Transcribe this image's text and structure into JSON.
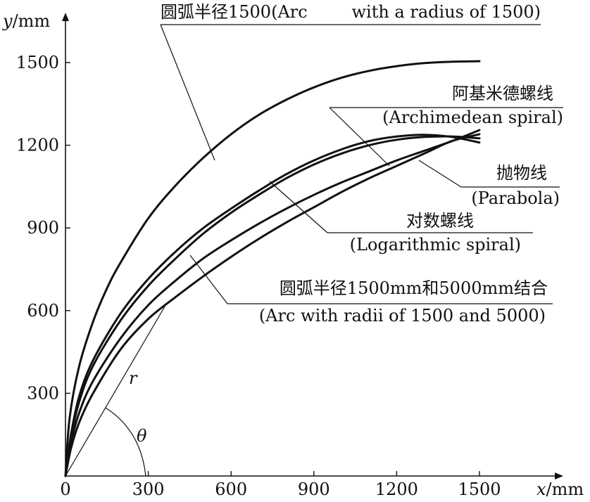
{
  "chart_data": {
    "type": "line",
    "xlabel_var": "x",
    "xlabel_unit": "/mm",
    "ylabel_var": "y",
    "ylabel_unit": "/mm",
    "x_ticks": [
      "0",
      "300",
      "600",
      "900",
      "1200",
      "1500"
    ],
    "y_ticks": [
      "300",
      "600",
      "900",
      "1200",
      "1500"
    ],
    "xlim": [
      0,
      1500
    ],
    "ylim": [
      0,
      1500
    ],
    "series": [
      {
        "name": "圆弧半径1500(Arc with a radius of 1500)",
        "label_cn": "圆弧半径1500(Arc",
        "label_en": "with a radius of 1500)",
        "x": [
          0,
          15,
          50,
          100,
          150,
          200,
          300,
          400,
          500,
          600,
          700,
          800,
          900,
          1000,
          1100,
          1200,
          1300,
          1400,
          1500
        ],
        "y": [
          0,
          210,
          400,
          560,
          680,
          775,
          935,
          1055,
          1155,
          1240,
          1310,
          1365,
          1410,
          1445,
          1470,
          1487,
          1498,
          1503,
          1505
        ]
      },
      {
        "name": "阿基米德螺线(Archimedean spiral)",
        "label_cn": "阿基米德螺线",
        "label_en": "(Archimedean spiral)",
        "x": [
          0,
          20,
          50,
          100,
          200,
          300,
          400,
          500,
          600,
          700,
          800,
          900,
          1000,
          1100,
          1200,
          1300,
          1400,
          1500
        ],
        "y": [
          0,
          150,
          290,
          420,
          590,
          715,
          815,
          900,
          970,
          1035,
          1095,
          1145,
          1185,
          1215,
          1232,
          1238,
          1230,
          1210
        ]
      },
      {
        "name": "抛物线(Parabola)",
        "label_cn": "抛物线",
        "label_en": "(Parabola)",
        "x": [
          0,
          20,
          50,
          100,
          200,
          300,
          400,
          500,
          600,
          700,
          800,
          900,
          1000,
          1100,
          1200,
          1300,
          1400,
          1500
        ],
        "y": [
          0,
          140,
          270,
          400,
          565,
          690,
          790,
          880,
          955,
          1020,
          1080,
          1130,
          1170,
          1200,
          1220,
          1230,
          1232,
          1225
        ]
      },
      {
        "name": "对数螺线(Logarithmic spiral)",
        "label_cn": "对数螺线",
        "label_en": "(Logarithmic spiral)",
        "x": [
          0,
          20,
          50,
          100,
          200,
          300,
          400,
          500,
          600,
          700,
          800,
          900,
          1000,
          1100,
          1200,
          1300,
          1400,
          1500
        ],
        "y": [
          0,
          120,
          230,
          345,
          500,
          620,
          710,
          790,
          855,
          915,
          970,
          1020,
          1065,
          1105,
          1145,
          1180,
          1215,
          1255
        ]
      },
      {
        "name": "圆弧半径1500mm和5000mm结合(Arc with radii of 1500 and 5000)",
        "label_cn": "圆弧半径1500mm和5000mm结合",
        "label_en": "(Arc with radii of 1500 and 5000)",
        "x": [
          0,
          20,
          50,
          100,
          200,
          300,
          400,
          500,
          600,
          700,
          800,
          900,
          1000,
          1100,
          1200,
          1300,
          1400,
          1500
        ],
        "y": [
          0,
          100,
          195,
          300,
          460,
          570,
          650,
          725,
          795,
          860,
          920,
          975,
          1030,
          1080,
          1125,
          1170,
          1215,
          1240
        ]
      }
    ],
    "annotations": {
      "radius_label": "r",
      "angle_label": "θ"
    },
    "grid": false,
    "legend": "callout labels"
  }
}
